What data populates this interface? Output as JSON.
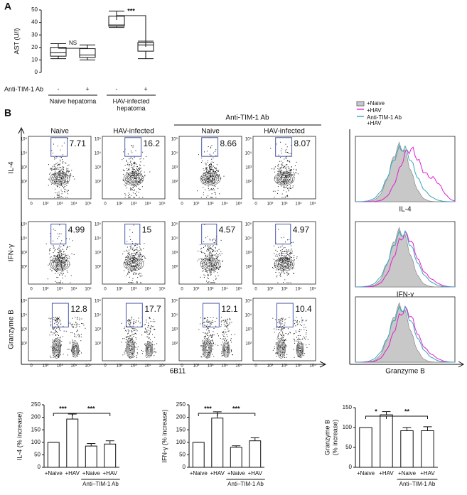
{
  "panel_labels": [
    "A",
    "B"
  ],
  "chart_data": [
    {
      "type": "box",
      "y_label": "AST (U/l)",
      "categories": [
        "-",
        "+",
        "-",
        "+"
      ],
      "row_label": "Anti-TIM-1 Ab",
      "groups": [
        [
          "Naive hepatoma"
        ],
        [
          "HAV-infected",
          "hepatoma"
        ]
      ],
      "min": [
        11,
        10,
        36,
        11
      ],
      "q1": [
        13,
        12,
        37,
        17
      ],
      "median": [
        16,
        14,
        38,
        22
      ],
      "q3": [
        20,
        19,
        45,
        24
      ],
      "max": [
        23,
        22,
        49,
        25
      ],
      "ylim": [
        0,
        50
      ],
      "yticks": [
        0,
        10,
        20,
        30,
        40,
        50
      ],
      "annotations": [
        "NS",
        "***"
      ]
    },
    {
      "type": "bar",
      "y_label": [
        "IL-4 (% increase)"
      ],
      "categories": [
        "+Naive",
        "+HAV",
        "+Naive",
        "+HAV"
      ],
      "group_label": "Anti–TIM-1 Ab",
      "values": [
        100,
        193,
        85,
        93
      ],
      "errors": [
        0,
        20,
        10,
        13
      ],
      "ylim": [
        0,
        250
      ],
      "yticks": [
        0,
        50,
        100,
        150,
        200,
        250
      ],
      "annotations": [
        "***",
        "***"
      ]
    },
    {
      "type": "bar",
      "y_label": [
        "IFN-γ (% increase)"
      ],
      "categories": [
        "+Naive",
        "+HAV",
        "+Naive",
        "+HAV"
      ],
      "group_label": "Anti–TIM-1 Ab",
      "values": [
        100,
        197,
        80,
        106
      ],
      "errors": [
        0,
        25,
        6,
        12
      ],
      "ylim": [
        0,
        250
      ],
      "yticks": [
        0,
        50,
        100,
        150,
        200,
        250
      ],
      "annotations": [
        "***",
        "***"
      ]
    },
    {
      "type": "bar",
      "y_label": [
        "Granzyme B",
        "(% increase)"
      ],
      "categories": [
        "+Naive",
        "+HAV",
        "+Naive",
        "+HAV"
      ],
      "group_label": "Anti–TIM-1 Ab",
      "values": [
        100,
        132,
        92,
        92
      ],
      "errors": [
        0,
        8,
        8,
        10
      ],
      "ylim": [
        0,
        150
      ],
      "yticks": [
        0,
        50,
        100,
        150
      ],
      "annotations": [
        "*",
        "**"
      ]
    }
  ],
  "flow": {
    "header": "Anti-TIM-1 Ab",
    "columns": [
      "Naive",
      "HAV-infected",
      "Naive",
      "HAV-infected"
    ],
    "rows": [
      "IL-4",
      "IFN-γ",
      "Granzyme B"
    ],
    "gates": [
      [
        7.71,
        16.2,
        8.66,
        8.07
      ],
      [
        4.99,
        15,
        4.57,
        4.97
      ],
      [
        12.8,
        17.7,
        12.1,
        10.4
      ]
    ],
    "ticks": [
      "0",
      "10²",
      "10³",
      "10⁴",
      "10⁵"
    ],
    "x_label": "6B11"
  },
  "histogram": {
    "legend": [
      {
        "label": [
          "+Naive"
        ],
        "color": "#c8c8c8"
      },
      {
        "label": [
          "+HAV"
        ],
        "color": "#e01fd0"
      },
      {
        "label": [
          "Anti-TIM-1 Ab",
          "+HAV"
        ],
        "color": "#3aa6b8"
      }
    ],
    "x_labels": [
      "IL-4",
      "IFN-γ",
      "Granzyme B"
    ]
  }
}
